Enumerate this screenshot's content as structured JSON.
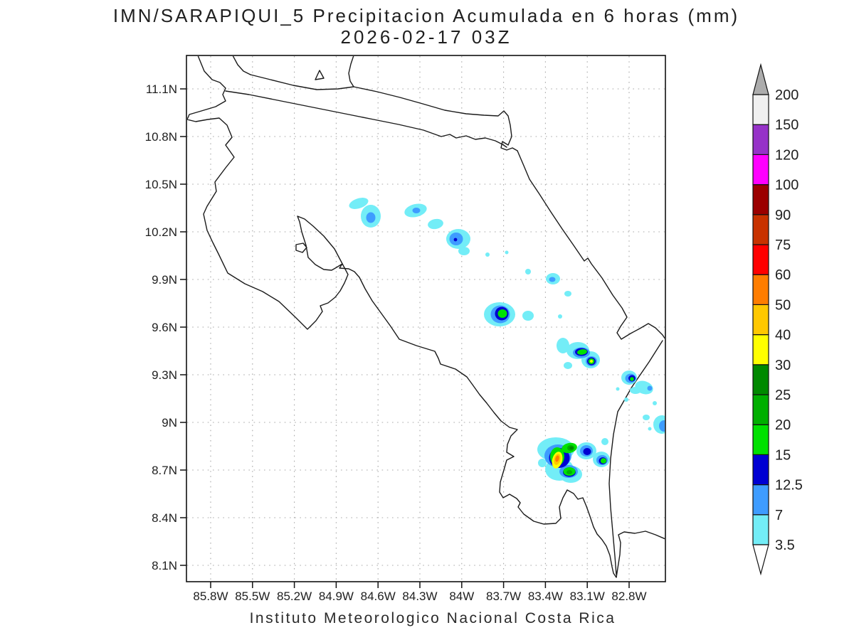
{
  "header": {
    "title": "IMN/SARAPIQUI_5 Precipitacion Acumulada en 6 horas (mm)",
    "subtitle": "2026-02-17 03Z"
  },
  "footer": {
    "credit": "Instituto Meteorologico Nacional Costa Rica"
  },
  "chart_data": {
    "type": "heatmap",
    "title": "IMN/SARAPIQUI_5 Precipitacion Acumulada en 6 horas (mm)",
    "subtitle": "2026-02-17 03Z",
    "units": "mm",
    "region": "Costa Rica",
    "grid": "dotted",
    "legend_position": "right",
    "lon_range_deg": [
      -85.97,
      -82.54
    ],
    "lat_range_deg": [
      8.0,
      11.31
    ],
    "lon_ticks": [
      {
        "label": "85.8W",
        "value": -85.8
      },
      {
        "label": "85.5W",
        "value": -85.5
      },
      {
        "label": "85.2W",
        "value": -85.2
      },
      {
        "label": "84.9W",
        "value": -84.9
      },
      {
        "label": "84.6W",
        "value": -84.6
      },
      {
        "label": "84.3W",
        "value": -84.3
      },
      {
        "label": "84W",
        "value": -84.0
      },
      {
        "label": "83.7W",
        "value": -83.7
      },
      {
        "label": "83.4W",
        "value": -83.4
      },
      {
        "label": "83.1W",
        "value": -83.1
      },
      {
        "label": "82.8W",
        "value": -82.8
      }
    ],
    "lat_ticks": [
      {
        "label": "11.1N",
        "value": 11.1
      },
      {
        "label": "10.8N",
        "value": 10.8
      },
      {
        "label": "10.5N",
        "value": 10.5
      },
      {
        "label": "10.2N",
        "value": 10.2
      },
      {
        "label": "9.9N",
        "value": 9.9
      },
      {
        "label": "9.6N",
        "value": 9.6
      },
      {
        "label": "9.3N",
        "value": 9.3
      },
      {
        "label": "9N",
        "value": 9.0
      },
      {
        "label": "8.7N",
        "value": 8.7
      },
      {
        "label": "8.4N",
        "value": 8.4
      },
      {
        "label": "8.1N",
        "value": 8.1
      }
    ],
    "colorbar": {
      "boundary_labels": [
        "3.5",
        "7",
        "12.5",
        "15",
        "20",
        "25",
        "30",
        "40",
        "50",
        "60",
        "75",
        "90",
        "100",
        "120",
        "150",
        "200"
      ],
      "boundary_values": [
        3.5,
        7,
        12.5,
        15,
        20,
        25,
        30,
        40,
        50,
        60,
        75,
        90,
        100,
        120,
        150,
        200
      ],
      "segment_colors": [
        "#73EDF7",
        "#3E9CFF",
        "#0000D2",
        "#00E100",
        "#00AF00",
        "#008900",
        "#FFFF00",
        "#FFC800",
        "#FF7D00",
        "#FF0000",
        "#C83200",
        "#9B0000",
        "#FF00FF",
        "#9632C8",
        "#F0F0F0"
      ],
      "over_arrow_color": "#ACACAC",
      "under_arrow_color": "#FFFFFF"
    },
    "cells": [
      {
        "lon": -84.74,
        "lat": 10.38,
        "peak_mm_range": "3.5-7"
      },
      {
        "lon": -84.66,
        "lat": 10.29,
        "peak_mm_range": "7-12.5"
      },
      {
        "lon": -84.33,
        "lat": 10.33,
        "peak_mm_range": "7-12.5"
      },
      {
        "lon": -84.19,
        "lat": 10.25,
        "peak_mm_range": "3.5-7"
      },
      {
        "lon": -84.03,
        "lat": 10.16,
        "peak_mm_range": "12.5-15"
      },
      {
        "lon": -83.35,
        "lat": 9.9,
        "peak_mm_range": "7-12.5"
      },
      {
        "lon": -83.73,
        "lat": 9.68,
        "peak_mm_range": "15-20"
      },
      {
        "lon": -83.14,
        "lat": 9.44,
        "peak_mm_range": "15-20"
      },
      {
        "lon": -83.07,
        "lat": 9.39,
        "peak_mm_range": "30-40"
      },
      {
        "lon": -82.78,
        "lat": 9.27,
        "peak_mm_range": "15-20"
      },
      {
        "lon": -82.69,
        "lat": 9.21,
        "peak_mm_range": "7-12.5"
      },
      {
        "lon": -82.57,
        "lat": 8.99,
        "peak_mm_range": "7-12.5"
      },
      {
        "lon": -83.31,
        "lat": 8.77,
        "peak_mm_range": "50-60"
      },
      {
        "lon": -83.1,
        "lat": 8.82,
        "peak_mm_range": "12.5-15"
      },
      {
        "lon": -82.99,
        "lat": 8.77,
        "peak_mm_range": "15-20"
      }
    ]
  }
}
